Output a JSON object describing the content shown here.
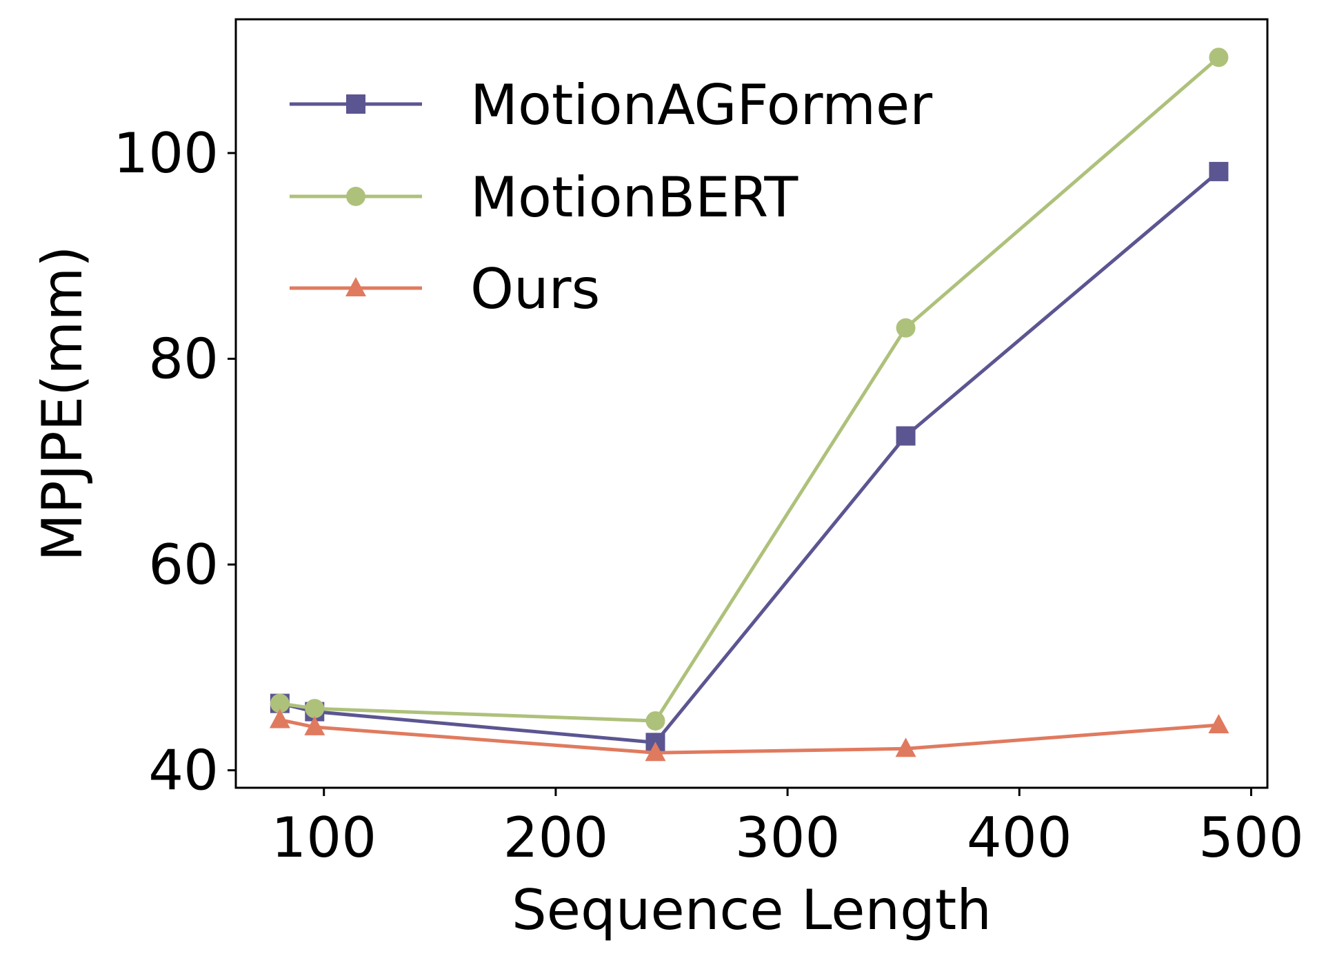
{
  "chart_data": {
    "type": "line",
    "xlabel": "Sequence Length",
    "ylabel": "MPJPE(mm)",
    "xlim": [
      62,
      507
    ],
    "ylim": [
      38.3,
      113
    ],
    "xticks": [
      100,
      200,
      300,
      400,
      500
    ],
    "yticks": [
      40,
      60,
      80,
      100
    ],
    "grid": false,
    "legend_position": "top-left",
    "series": [
      {
        "name": "MotionAGFormer",
        "color": "#5b5591",
        "marker": "square",
        "x": [
          81,
          96,
          243,
          351,
          486
        ],
        "y": [
          46.5,
          45.7,
          42.7,
          72.5,
          98.2
        ]
      },
      {
        "name": "MotionBERT",
        "color": "#aec17b",
        "marker": "circle",
        "x": [
          81,
          96,
          243,
          351,
          486
        ],
        "y": [
          46.5,
          46.0,
          44.8,
          83.0,
          109.3
        ]
      },
      {
        "name": "Ours",
        "color": "#e07a5f",
        "marker": "triangle",
        "x": [
          81,
          96,
          243,
          351,
          486
        ],
        "y": [
          44.9,
          44.2,
          41.7,
          42.1,
          44.4
        ]
      }
    ]
  }
}
